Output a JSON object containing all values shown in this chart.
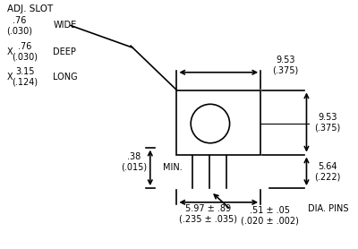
{
  "bg_color": "#ffffff",
  "line_color": "#000000",
  "text_color": "#000000",
  "figsize": [
    4.0,
    2.78
  ],
  "dpi": 100,
  "annotations": {
    "adj_slot": "ADJ. SLOT",
    "wide_label": "WIDE",
    "deep_label": "DEEP",
    "long_label": "LONG",
    "min_label": "MIN.",
    "dia_pins": "DIA. PINS",
    "val_76_030_wide": ".76\n(.030)",
    "val_76_030_deep": ".76\n(.030)",
    "val_315_124": "3.15\n(.124)",
    "val_38_015": ".38\n(.015)",
    "val_953_375_top": "9.53\n(.375)",
    "val_953_375_bot": "9.53\n(.375)",
    "val_564_222": "5.64\n(.222)",
    "val_597_89": "5.97 ± .89\n(.235 ± .035)",
    "val_51_05": ".51 ± .05\n(.020 ± .002)"
  }
}
